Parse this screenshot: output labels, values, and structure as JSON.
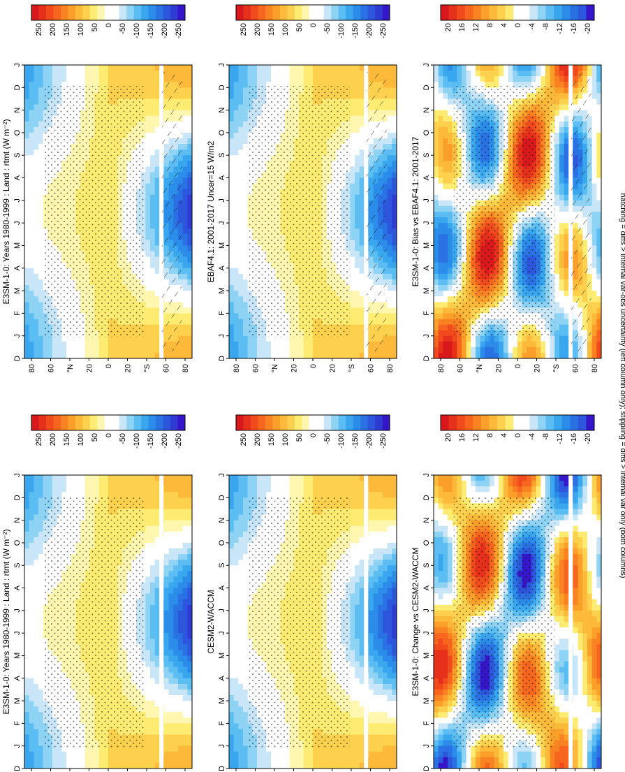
{
  "footer_note": "hatching = diffs > internal var-obs uncertainty (left column only); stippling = diffs > internal var only (both columns)",
  "colors": {
    "scale_main": [
      "#d7191c",
      "#e6301c",
      "#f04a1d",
      "#f6661f",
      "#f98323",
      "#fb9f2b",
      "#fcb93a",
      "#fdd04e",
      "#feec72",
      "#fff6b0",
      "#ffffff",
      "#ffffff",
      "#c8e6f7",
      "#8fd3f4",
      "#5bbdf1",
      "#39a6ee",
      "#2b8de9",
      "#2a72e3",
      "#2c57dc",
      "#2f3bd3",
      "#3516c8"
    ],
    "scale_diff": [
      "#d7191c",
      "#e6301c",
      "#f04a1d",
      "#f6661f",
      "#f98323",
      "#fb9f2b",
      "#fcb93a",
      "#fdd04e",
      "#feec72",
      "#ffffff",
      "#ffffff",
      "#c8e6f7",
      "#8fd3f4",
      "#5bbdf1",
      "#39a6ee",
      "#2b8de9",
      "#2a72e3",
      "#2c57dc",
      "#3516c8"
    ]
  },
  "chart_data": [
    {
      "type": "heatmap",
      "title": "E3SM-1-0: Years 1980-1999 : Land : rtmt (W m⁻²)",
      "x_axis": {
        "label": "",
        "ticks": [
          "D",
          "J",
          "F",
          "M",
          "A",
          "M",
          "J",
          "J",
          "A",
          "S",
          "O",
          "N",
          "D",
          "J"
        ]
      },
      "y_axis": {
        "label": "",
        "ticks": [
          "80",
          "60",
          "°N",
          "20",
          "0",
          "20",
          "°S",
          "60",
          "80"
        ],
        "range": [
          90,
          -90
        ]
      },
      "colorbar": {
        "labels": [
          "250",
          "200",
          "150",
          "100",
          "50",
          "0",
          "-50",
          "-100",
          "-150",
          "-200",
          "-250"
        ],
        "range": [
          250,
          -250
        ]
      },
      "overlays": [
        "stippling",
        "hatching"
      ]
    },
    {
      "type": "heatmap",
      "title": "E3SM-1-0: Years 1980-1999 : Land : rtmt (W m⁻²)",
      "x_axis": {
        "label": "",
        "ticks": [
          "D",
          "J",
          "F",
          "M",
          "A",
          "M",
          "J",
          "J",
          "A",
          "S",
          "O",
          "N",
          "D",
          "J"
        ]
      },
      "y_axis": {
        "label": "",
        "ticks": [
          "80",
          "60",
          "°N",
          "20",
          "0",
          "20",
          "°S",
          "60",
          "80"
        ],
        "range": [
          90,
          -90
        ]
      },
      "colorbar": {
        "labels": [
          "250",
          "200",
          "150",
          "100",
          "50",
          "0",
          "-50",
          "-100",
          "-150",
          "-200",
          "-250"
        ],
        "range": [
          250,
          -250
        ]
      },
      "overlays": [
        "stippling"
      ]
    },
    {
      "type": "heatmap",
      "title": "EBAF4.1: 2001-2017 Uncer=15 W/m2",
      "x_axis": {
        "label": "",
        "ticks": [
          "D",
          "J",
          "F",
          "M",
          "A",
          "M",
          "J",
          "J",
          "A",
          "S",
          "O",
          "N",
          "D",
          "J"
        ]
      },
      "y_axis": {
        "label": "",
        "ticks": [
          "80",
          "60",
          "°N",
          "20",
          "0",
          "20",
          "°S",
          "60",
          "80"
        ],
        "range": [
          90,
          -90
        ]
      },
      "colorbar": {
        "labels": [
          "250",
          "200",
          "150",
          "100",
          "50",
          "0",
          "-50",
          "-100",
          "-150",
          "-200",
          "-250"
        ],
        "range": [
          250,
          -250
        ]
      },
      "overlays": [
        "stippling",
        "hatching"
      ]
    },
    {
      "type": "heatmap",
      "title": "CESM2-WACCM",
      "x_axis": {
        "label": "",
        "ticks": [
          "D",
          "J",
          "F",
          "M",
          "A",
          "M",
          "J",
          "J",
          "A",
          "S",
          "O",
          "N",
          "D",
          "J"
        ]
      },
      "y_axis": {
        "label": "",
        "ticks": [
          "80",
          "60",
          "°N",
          "20",
          "0",
          "20",
          "°S",
          "60",
          "80"
        ],
        "range": [
          90,
          -90
        ]
      },
      "colorbar": {
        "labels": [
          "250",
          "200",
          "150",
          "100",
          "50",
          "0",
          "-50",
          "-100",
          "-150",
          "-200",
          "-250"
        ],
        "range": [
          250,
          -250
        ]
      },
      "overlays": [
        "stippling"
      ]
    },
    {
      "type": "heatmap",
      "title": "E3SM-1-0: Bias vs EBAF4.1: 2001-2017",
      "x_axis": {
        "label": "",
        "ticks": [
          "D",
          "J",
          "F",
          "M",
          "A",
          "M",
          "J",
          "J",
          "A",
          "S",
          "O",
          "N",
          "D",
          "J"
        ]
      },
      "y_axis": {
        "label": "",
        "ticks": [
          "80",
          "60",
          "°N",
          "20",
          "0",
          "20",
          "°S",
          "60",
          "80"
        ],
        "range": [
          90,
          -90
        ]
      },
      "colorbar": {
        "labels": [
          "20",
          "16",
          "12",
          "8",
          "4",
          "0",
          "-4",
          "-8",
          "-12",
          "-16",
          "-20"
        ],
        "range": [
          20,
          -20
        ]
      },
      "overlays": [
        "stippling",
        "hatching"
      ]
    },
    {
      "type": "heatmap",
      "title": "E3SM-1-0: Change vs CESM2-WACCM",
      "x_axis": {
        "label": "",
        "ticks": [
          "D",
          "J",
          "F",
          "M",
          "A",
          "M",
          "J",
          "J",
          "A",
          "S",
          "O",
          "N",
          "D",
          "J"
        ]
      },
      "y_axis": {
        "label": "",
        "ticks": [
          "80",
          "60",
          "°N",
          "20",
          "0",
          "20",
          "°S",
          "60",
          "80"
        ],
        "range": [
          90,
          -90
        ]
      },
      "colorbar": {
        "labels": [
          "20",
          "16",
          "12",
          "8",
          "4",
          "0",
          "-4",
          "-8",
          "-12",
          "-16",
          "-20"
        ],
        "range": [
          20,
          -20
        ]
      },
      "overlays": [
        "stippling"
      ]
    }
  ]
}
